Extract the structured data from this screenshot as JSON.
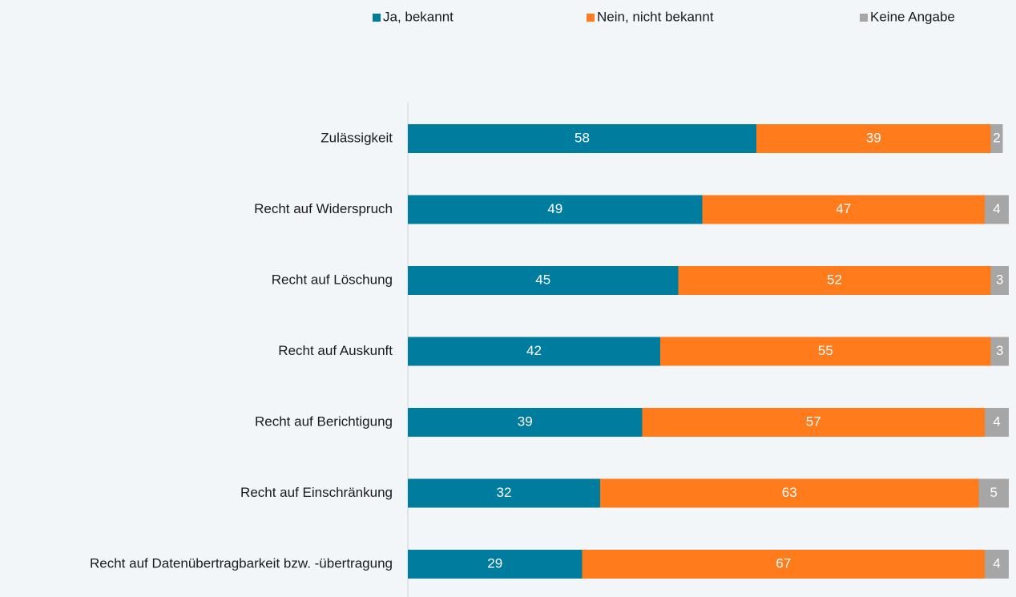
{
  "chart_data": {
    "type": "stacked-bar-horizontal",
    "categories": [
      "Zulässigkeit",
      "Recht auf Widerspruch",
      "Recht auf Löschung",
      "Recht auf Auskunft",
      "Recht auf Berichtigung",
      "Recht auf Einschränkung",
      "Recht auf Datenübertragbarkeit bzw. -übertragung"
    ],
    "series": [
      {
        "name": "Ja, bekannt",
        "color": "#007c9e",
        "values": [
          58,
          49,
          45,
          42,
          39,
          32,
          29
        ]
      },
      {
        "name": "Nein, nicht bekannt",
        "color": "#ff7b1c",
        "values": [
          39,
          47,
          52,
          55,
          57,
          63,
          67
        ]
      },
      {
        "name": "Keine Angabe",
        "color": "#a6a6a6",
        "values": [
          2,
          4,
          3,
          3,
          4,
          5,
          4
        ]
      }
    ],
    "xlim": [
      0,
      100
    ],
    "legend": "top"
  }
}
